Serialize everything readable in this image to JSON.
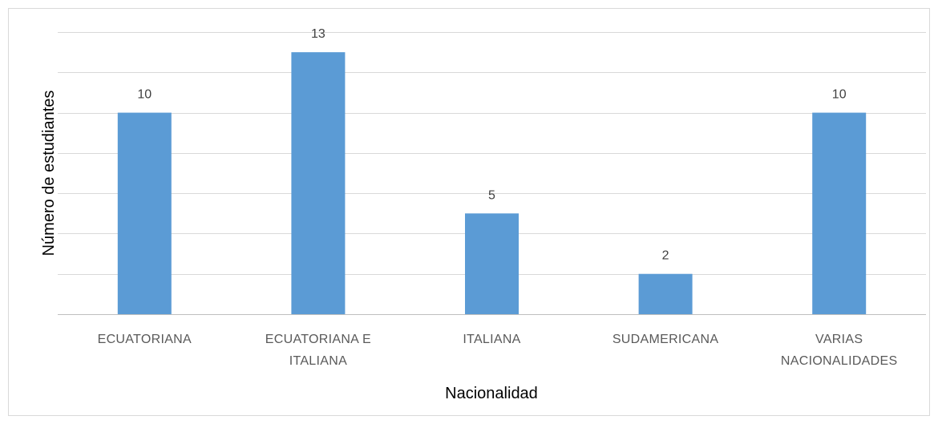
{
  "chart_data": {
    "type": "bar",
    "x_label": "Nacionalidad",
    "y_label": "Número de estudiantes",
    "categories": [
      "ECUATORIANA",
      "ECUATORIANA E ITALIANA",
      "ITALIANA",
      "SUDAMERICANA",
      "VARIAS NACIONALIDADES"
    ],
    "values": [
      10,
      13,
      5,
      2,
      10
    ],
    "color": "#5b9bd5",
    "ylim": [
      0,
      14
    ],
    "yticks": [
      0,
      2,
      4,
      6,
      8,
      10,
      12,
      14
    ],
    "grid": true
  }
}
